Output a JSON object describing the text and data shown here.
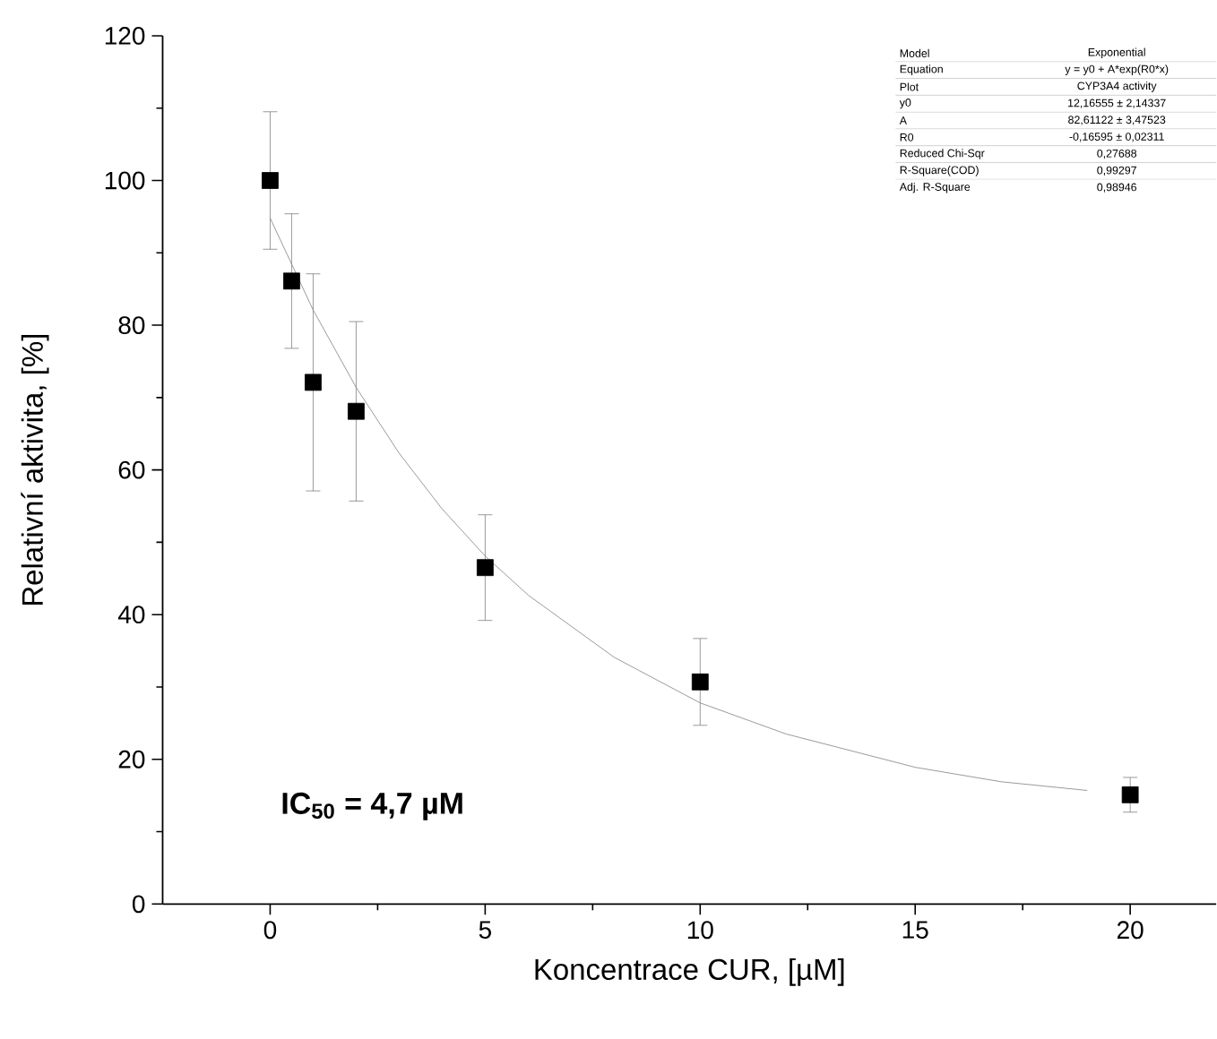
{
  "chart_data": {
    "type": "scatter",
    "xlabel": "Koncentrace CUR, [µM]",
    "ylabel": "Relativní aktivita, [%]",
    "xlim": [
      -2.5,
      22
    ],
    "ylim": [
      0,
      120
    ],
    "xticks": [
      0,
      5,
      10,
      15,
      20
    ],
    "yticks": [
      0,
      20,
      40,
      60,
      80,
      100,
      120
    ],
    "series": [
      {
        "color": "#000000",
        "marker": "square",
        "x": [
          0,
          0.5,
          1,
          2,
          5,
          10,
          20
        ],
        "values": [
          100,
          86.1,
          72.1,
          68.1,
          46.5,
          30.7,
          15.1
        ],
        "errors": [
          9.5,
          9.3,
          15,
          12.4,
          7.3,
          6,
          2.4
        ]
      },
      {
        "type": "line",
        "color": "#808080",
        "marker": "none",
        "x": [
          0,
          1,
          2,
          3,
          4,
          5,
          6,
          8,
          10,
          12,
          15,
          17,
          19
        ],
        "values": [
          94.8,
          82.1,
          71.4,
          62.3,
          54.6,
          48.1,
          42.7,
          34.1,
          27.8,
          23.5,
          18.9,
          16.9,
          15.7
        ]
      }
    ],
    "annotations": [
      "IC$_{50}$ = 4,7 µM",
      "Model",
      "Exponential",
      "Equation",
      "y = y0 + A*exp(R0*x)",
      "Plot",
      "CYP3A4 activity",
      "y0",
      "12,16555 ± 2,14337",
      "A",
      "82,61122 ± 3,47523",
      "R0",
      "-0,16595 ± 0,02311",
      "Reduced Chi-Sqr",
      "0,27688",
      "R-Square(COD)",
      "0,99297",
      "Adj. R-Square",
      "0,98946"
    ]
  }
}
